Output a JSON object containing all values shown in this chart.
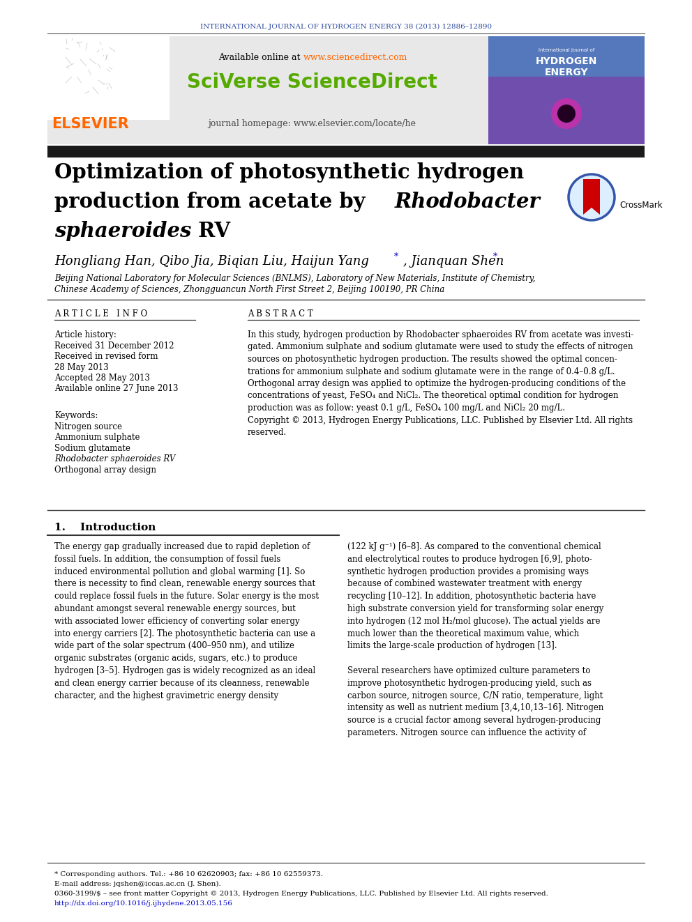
{
  "journal_header": "INTERNATIONAL JOURNAL OF HYDROGEN ENERGY 38 (2013) 12886–12890",
  "journal_header_color": "#2E4BA0",
  "available_online_text": "Available online at ",
  "sciencedirect_url": "www.sciencedirect.com",
  "sciencedirect_url_color": "#FF6600",
  "sciverse_text": "SciVerse ScienceDirect",
  "sciverse_color": "#55AA00",
  "journal_homepage_text": "journal homepage: www.elsevier.com/locate/he",
  "elsevier_text": "ELSEVIER",
  "elsevier_color": "#FF6600",
  "title_line1": "Optimization of photosynthetic hydrogen",
  "title_line2_normal": "production from acetate by ",
  "title_line2_italic": "Rhodobacter",
  "title_line3_italic": "sphaeroides",
  "title_line3_normal": " RV",
  "authors_pre": "Hongliang Han, Qibo Jia, Biqian Liu, Haijun Yang",
  "authors_mid": ", Jianquan Shen",
  "affiliation1": "Beijing National Laboratory for Molecular Sciences (BNLMS), Laboratory of New Materials, Institute of Chemistry,",
  "affiliation2": "Chinese Academy of Sciences, Zhongguancun North First Street 2, Beijing 100190, PR China",
  "article_history_label": "Article history:",
  "received1": "Received 31 December 2012",
  "received2": "Received in revised form",
  "received2b": "28 May 2013",
  "accepted": "Accepted 28 May 2013",
  "available": "Available online 27 June 2013",
  "keywords_label": "Keywords:",
  "keyword1": "Nitrogen source",
  "keyword2": "Ammonium sulphate",
  "keyword3": "Sodium glutamate",
  "keyword4": "Rhodobacter sphaeroides RV",
  "keyword5": "Orthogonal array design",
  "abstract_text": "In this study, hydrogen production by Rhodobacter sphaeroides RV from acetate was investi-\ngated. Ammonium sulphate and sodium glutamate were used to study the effects of nitrogen\nsources on photosynthetic hydrogen production. The results showed the optimal concen-\ntrations for ammonium sulphate and sodium glutamate were in the range of 0.4–0.8 g/L.\nOrthogonal array design was applied to optimize the hydrogen-producing conditions of the\nconcentrations of yeast, FeSO₄ and NiCl₂. The theoretical optimal condition for hydrogen\nproduction was as follow: yeast 0.1 g/L, FeSO₄ 100 mg/L and NiCl₂ 20 mg/L.\nCopyright © 2013, Hydrogen Energy Publications, LLC. Published by Elsevier Ltd. All rights\nreserved.",
  "intro_header": "1.    Introduction",
  "intro_col1": "The energy gap gradually increased due to rapid depletion of\nfossil fuels. In addition, the consumption of fossil fuels\ninduced environmental pollution and global warming [1]. So\nthere is necessity to find clean, renewable energy sources that\ncould replace fossil fuels in the future. Solar energy is the most\nabundant amongst several renewable energy sources, but\nwith associated lower efficiency of converting solar energy\ninto energy carriers [2]. The photosynthetic bacteria can use a\nwide part of the solar spectrum (400–950 nm), and utilize\norganic substrates (organic acids, sugars, etc.) to produce\nhydrogen [3–5]. Hydrogen gas is widely recognized as an ideal\nand clean energy carrier because of its cleanness, renewable\ncharacter, and the highest gravimetric energy density",
  "intro_col2": "(122 kJ g⁻¹) [6–8]. As compared to the conventional chemical\nand electrolytical routes to produce hydrogen [6,9], photo-\nsynthetic hydrogen production provides a promising ways\nbecause of combined wastewater treatment with energy\nrecycling [10–12]. In addition, photosynthetic bacteria have\nhigh substrate conversion yield for transforming solar energy\ninto hydrogen (12 mol H₂/mol glucose). The actual yields are\nmuch lower than the theoretical maximum value, which\nlimits the large-scale production of hydrogen [13].\n\nSeveral researchers have optimized culture parameters to\nimprove photosynthetic hydrogen-producing yield, such as\ncarbon source, nitrogen source, C/N ratio, temperature, light\nintensity as well as nutrient medium [3,4,10,13–16]. Nitrogen\nsource is a crucial factor among several hydrogen-producing\nparameters. Nitrogen source can influence the activity of",
  "footnote1": "* Corresponding authors. Tel.: +86 10 62620903; fax: +86 10 62559373.",
  "footnote2": "E-mail address: jqshen@iccas.ac.cn (J. Shen).",
  "footnote3": "0360-3199/$ – see front matter Copyright © 2013, Hydrogen Energy Publications, LLC. Published by Elsevier Ltd. All rights reserved.",
  "footnote4": "http://dx.doi.org/10.1016/j.ijhydene.2013.05.156",
  "footnote4_color": "#0000CC",
  "header_bg_color": "#E8E8E8",
  "black_bar_color": "#1A1A1A",
  "separator_color": "#404040"
}
